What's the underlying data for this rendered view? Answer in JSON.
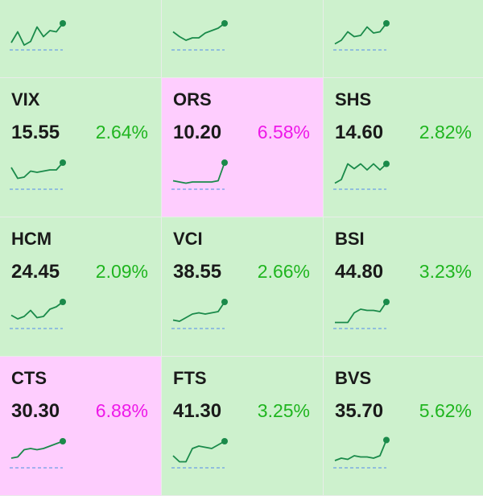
{
  "colors": {
    "up_bg": "#cdf1cd",
    "ceiling_bg": "#fecdfe",
    "up_text": "#1fb51f",
    "ceiling_text": "#ee18e8",
    "spark_line": "#1a8a4a",
    "ref_line": "#6d9fe6"
  },
  "tiles": [
    {
      "symbol": "",
      "price": "",
      "change": "",
      "state": "up",
      "spark": [
        0.1,
        0.55,
        0.0,
        0.15,
        0.75,
        0.35,
        0.6,
        0.55,
        0.9
      ]
    },
    {
      "symbol": "",
      "price": "",
      "change": "",
      "state": "up",
      "spark": [
        0.55,
        0.35,
        0.2,
        0.3,
        0.3,
        0.5,
        0.6,
        0.7,
        0.9
      ]
    },
    {
      "symbol": "",
      "price": "",
      "change": "",
      "state": "up",
      "spark": [
        0.05,
        0.2,
        0.55,
        0.35,
        0.4,
        0.75,
        0.5,
        0.55,
        0.9
      ]
    },
    {
      "symbol": "VIX",
      "price": "15.55",
      "change": "2.64%",
      "state": "up",
      "spark": [
        0.7,
        0.25,
        0.3,
        0.55,
        0.5,
        0.55,
        0.6,
        0.6,
        0.9
      ]
    },
    {
      "symbol": "ORS",
      "price": "10.20",
      "change": "6.58%",
      "state": "ceiling",
      "spark": [
        0.15,
        0.1,
        0.05,
        0.1,
        0.1,
        0.1,
        0.1,
        0.15,
        0.9
      ]
    },
    {
      "symbol": "SHS",
      "price": "14.60",
      "change": "2.82%",
      "state": "up",
      "spark": [
        0.05,
        0.2,
        0.85,
        0.65,
        0.85,
        0.6,
        0.85,
        0.6,
        0.85
      ]
    },
    {
      "symbol": "HCM",
      "price": "24.45",
      "change": "2.09%",
      "state": "up",
      "spark": [
        0.35,
        0.2,
        0.3,
        0.55,
        0.25,
        0.3,
        0.6,
        0.7,
        0.9
      ]
    },
    {
      "symbol": "VCI",
      "price": "38.55",
      "change": "2.66%",
      "state": "up",
      "spark": [
        0.15,
        0.1,
        0.25,
        0.4,
        0.45,
        0.4,
        0.45,
        0.5,
        0.9
      ]
    },
    {
      "symbol": "BSI",
      "price": "44.80",
      "change": "3.23%",
      "state": "up",
      "spark": [
        0.05,
        0.05,
        0.05,
        0.45,
        0.6,
        0.55,
        0.55,
        0.5,
        0.9
      ]
    },
    {
      "symbol": "CTS",
      "price": "30.30",
      "change": "6.88%",
      "state": "ceiling",
      "spark": [
        0.2,
        0.25,
        0.55,
        0.6,
        0.55,
        0.6,
        0.7,
        0.8,
        0.9
      ]
    },
    {
      "symbol": "FTS",
      "price": "41.30",
      "change": "3.25%",
      "state": "up",
      "spark": [
        0.3,
        0.05,
        0.05,
        0.6,
        0.7,
        0.65,
        0.6,
        0.75,
        0.9
      ]
    },
    {
      "symbol": "BVS",
      "price": "35.70",
      "change": "5.62%",
      "state": "up",
      "spark": [
        0.1,
        0.2,
        0.15,
        0.3,
        0.25,
        0.25,
        0.2,
        0.3,
        0.95
      ]
    }
  ]
}
